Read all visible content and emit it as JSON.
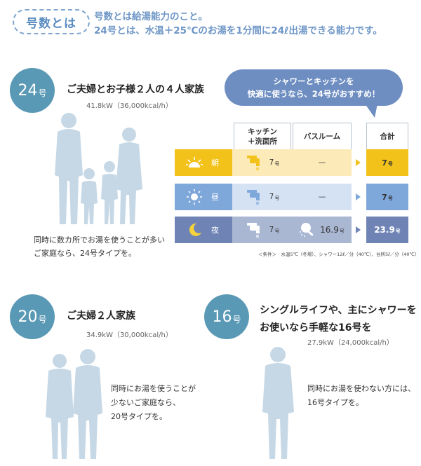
{
  "header": {
    "tag": "号数とは",
    "line1": "号数とは給湯能力のこと。",
    "line2": "24号とは、水温＋25℃のお湯を1分間に24ℓ出湯できる能力です。"
  },
  "sections": {
    "s24": {
      "badge_num": "24",
      "badge_unit": "号",
      "heading": "ご夫婦とお子様２人の４人家族",
      "power": "41.8kW（36,000kcal/h）",
      "desc1": "同時に数カ所でお湯を使うことが多い",
      "desc2": "ご家庭なら、24号タイプを。"
    },
    "s20": {
      "badge_num": "20",
      "badge_unit": "号",
      "heading": "ご夫婦２人家族",
      "power": "34.9kW（30,000kcal/h）",
      "desc1": "同時にお湯を使うことが",
      "desc2": "少ないご家庭なら、",
      "desc3": "20号タイプを。"
    },
    "s16": {
      "badge_num": "16",
      "badge_unit": "号",
      "heading1": "シングルライフや、主にシャワーを",
      "heading2": "お使いなら手軽な16号を",
      "power": "27.9kW（24,000kcal/h）",
      "desc1": "同時にお湯を使わない方には、",
      "desc2": "16号タイプを。"
    }
  },
  "bubble": {
    "line1": "シャワーとキッチンを",
    "line2": "快適に使うなら、24号がおすすめ！"
  },
  "table": {
    "col_kitchen": "キッチン\n＋洗面所",
    "col_bath": "バスルーム",
    "col_total": "合計",
    "rows": [
      {
        "label": "朝",
        "kitchen": "7",
        "bath": "—",
        "total": "7",
        "bath_unit": "",
        "color": "#f3c21a",
        "bg": "#fcebb8",
        "icon": "sunrise-icon"
      },
      {
        "label": "昼",
        "kitchen": "7",
        "bath": "—",
        "total": "7",
        "bath_unit": "",
        "color": "#7ea7da",
        "bg": "#d5e2f3",
        "icon": "sun-icon"
      },
      {
        "label": "夜",
        "kitchen": "7",
        "bath": "16.9",
        "total": "23.9",
        "bath_unit": "号",
        "color": "#6f84b5",
        "bg": "#aab7d3",
        "icon": "moon-icon"
      }
    ],
    "unit": "号",
    "note": "＜条件＞　水温5℃（冬場）、シャワー12ℓ／分（40℃）、台所5ℓ／分（40℃）"
  },
  "colors": {
    "badge": "#5a99b5",
    "silhouette": "#c6d8e6",
    "heading_blue": "#6d95c6"
  }
}
